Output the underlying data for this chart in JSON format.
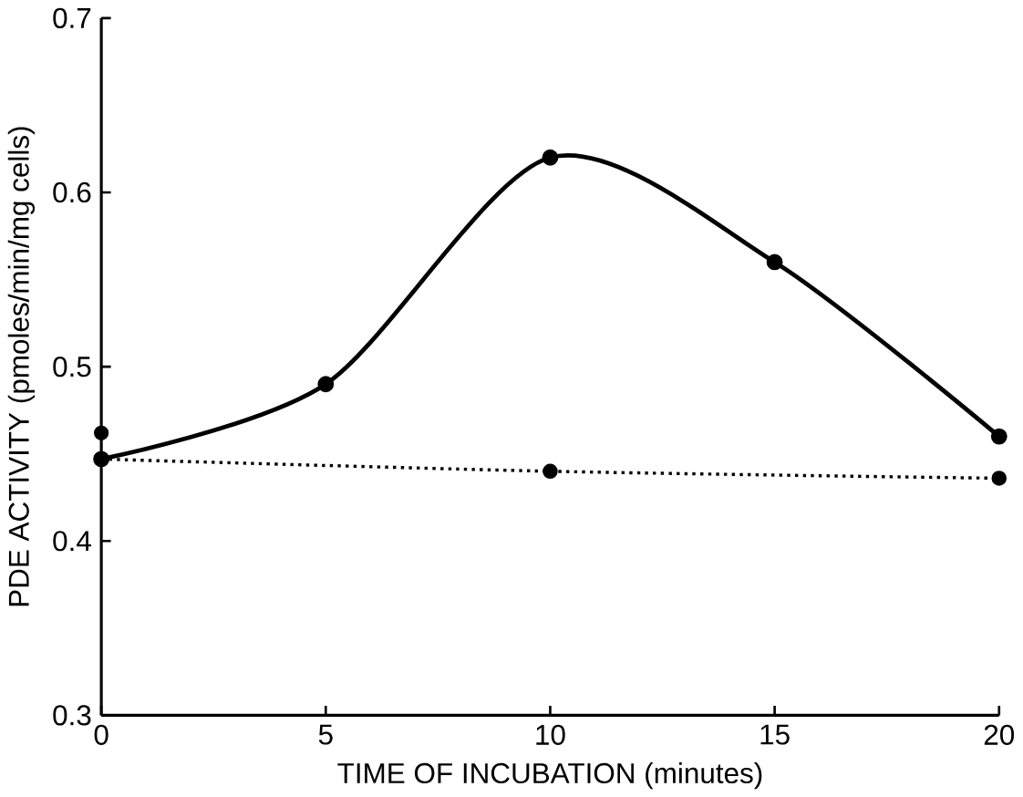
{
  "chart_data": {
    "type": "line",
    "xlabel": "TIME OF INCUBATION (minutes)",
    "ylabel": "PDE ACTIVITY (pmoles/min/mg cells)",
    "xlim": [
      0,
      20
    ],
    "ylim": [
      0.3,
      0.7
    ],
    "xticks": [
      0,
      5,
      10,
      15,
      20
    ],
    "yticks": [
      0.3,
      0.4,
      0.5,
      0.6,
      0.7
    ],
    "marker": "circle",
    "series": [
      {
        "color": "#000000",
        "line_style": "solid",
        "x": [
          0,
          5,
          10,
          15,
          20
        ],
        "values": [
          0.447,
          0.49,
          0.62,
          0.56,
          0.46
        ]
      },
      {
        "color": "#000000",
        "line_style": "dotted",
        "x": [
          0,
          10,
          20
        ],
        "values": [
          0.447,
          0.44,
          0.436
        ]
      },
      {
        "type": "scatter",
        "color": "#000000",
        "x": [
          0
        ],
        "values": [
          0.462
        ]
      }
    ]
  }
}
